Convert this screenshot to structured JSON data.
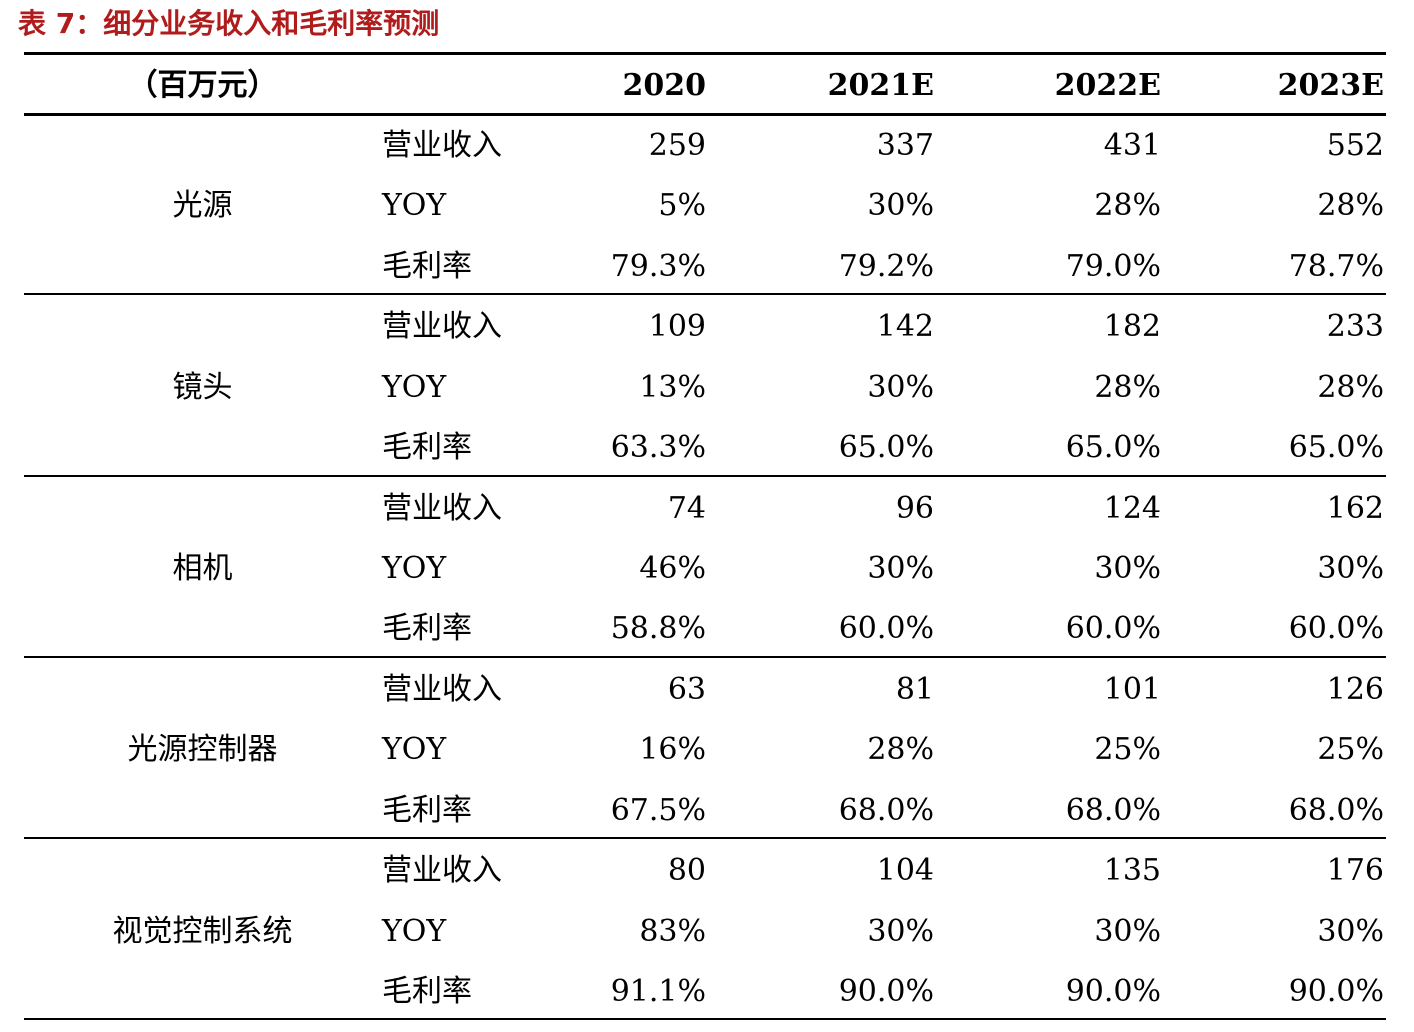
{
  "title": "表 7：细分业务收入和毛利率预测",
  "header": {
    "unit": "（百万元）",
    "years": [
      "2020",
      "2021E",
      "2022E",
      "2023E"
    ]
  },
  "groups": [
    {
      "category": "光源",
      "rows": [
        {
          "metric": "营业收入",
          "values": [
            "259",
            "337",
            "431",
            "552"
          ]
        },
        {
          "metric": "YOY",
          "values": [
            "5%",
            "30%",
            "28%",
            "28%"
          ]
        },
        {
          "metric": "毛利率",
          "values": [
            "79.3%",
            "79.2%",
            "79.0%",
            "78.7%"
          ]
        }
      ]
    },
    {
      "category": "镜头",
      "rows": [
        {
          "metric": "营业收入",
          "values": [
            "109",
            "142",
            "182",
            "233"
          ]
        },
        {
          "metric": "YOY",
          "values": [
            "13%",
            "30%",
            "28%",
            "28%"
          ]
        },
        {
          "metric": "毛利率",
          "values": [
            "63.3%",
            "65.0%",
            "65.0%",
            "65.0%"
          ]
        }
      ]
    },
    {
      "category": "相机",
      "rows": [
        {
          "metric": "营业收入",
          "values": [
            "74",
            "96",
            "124",
            "162"
          ]
        },
        {
          "metric": "YOY",
          "values": [
            "46%",
            "30%",
            "30%",
            "30%"
          ]
        },
        {
          "metric": "毛利率",
          "values": [
            "58.8%",
            "60.0%",
            "60.0%",
            "60.0%"
          ]
        }
      ]
    },
    {
      "category": "光源控制器",
      "rows": [
        {
          "metric": "营业收入",
          "values": [
            "63",
            "81",
            "101",
            "126"
          ]
        },
        {
          "metric": "YOY",
          "values": [
            "16%",
            "28%",
            "25%",
            "25%"
          ]
        },
        {
          "metric": "毛利率",
          "values": [
            "67.5%",
            "68.0%",
            "68.0%",
            "68.0%"
          ]
        }
      ]
    },
    {
      "category": "视觉控制系统",
      "rows": [
        {
          "metric": "营业收入",
          "values": [
            "80",
            "104",
            "135",
            "176"
          ]
        },
        {
          "metric": "YOY",
          "values": [
            "83%",
            "30%",
            "30%",
            "30%"
          ]
        },
        {
          "metric": "毛利率",
          "values": [
            "91.1%",
            "90.0%",
            "90.0%",
            "90.0%"
          ]
        }
      ]
    }
  ]
}
